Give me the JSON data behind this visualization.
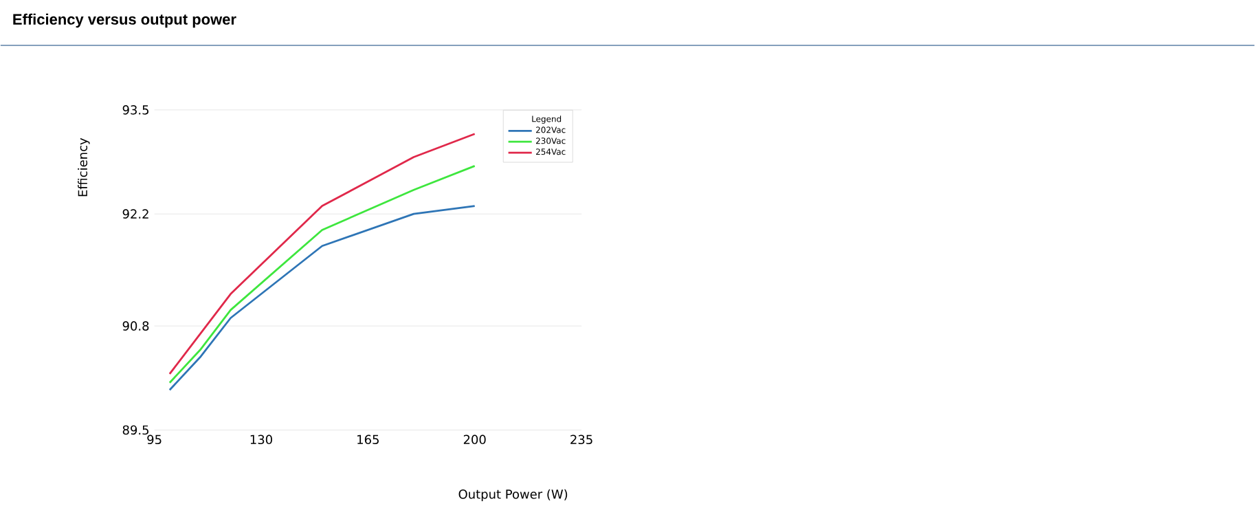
{
  "chart_data": {
    "type": "line",
    "title": "Efficiency versus output power",
    "xlabel": "Output Power (W)",
    "ylabel": "Efficiency",
    "legend_title": "Legend",
    "series": [
      {
        "name": "202Vac",
        "color": "#2e75b6",
        "x": [
          100,
          110,
          120,
          150,
          180,
          200
        ],
        "values": [
          90.0,
          90.41,
          90.9,
          91.8,
          92.2,
          92.3
        ]
      },
      {
        "name": "230Vac",
        "color": "#3ee63e",
        "x": [
          100,
          110,
          120,
          150,
          180,
          200
        ],
        "values": [
          90.09,
          90.5,
          91.0,
          92.0,
          92.5,
          92.8
        ]
      },
      {
        "name": "254Vac",
        "color": "#e0284a",
        "x": [
          100,
          120,
          150,
          180,
          200
        ],
        "values": [
          90.2,
          91.2,
          92.3,
          92.91,
          93.2
        ]
      }
    ],
    "xlim": [
      95,
      235
    ],
    "xticks": [
      95,
      130,
      165,
      200,
      235
    ],
    "ylim": [
      89.5,
      93.5
    ],
    "yticks": [
      89.5,
      90.8,
      92.2,
      93.5
    ],
    "grid": "y",
    "legend": "top right",
    "marker": "none",
    "line_style": "solid"
  }
}
